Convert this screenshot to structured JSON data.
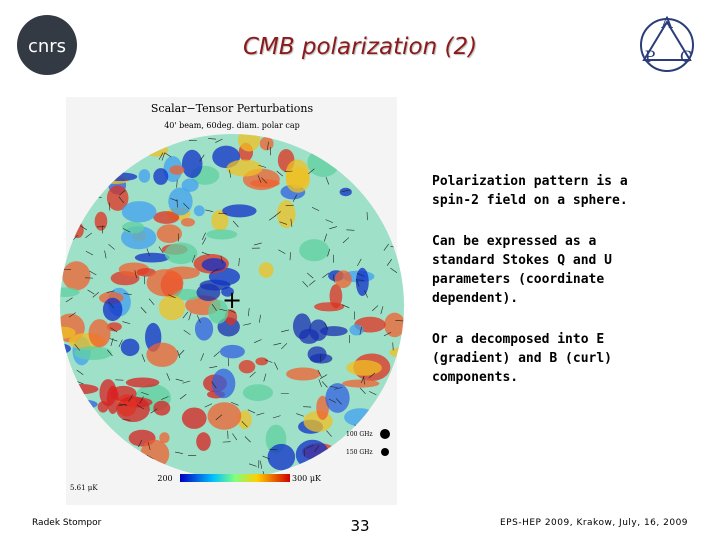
{
  "header": {
    "title": "CMB polarization (2)",
    "logo_left": "cnrs"
  },
  "figure": {
    "title": "Scalar−Tensor Perturbations",
    "subtitle": "40' beam, 60deg. diam. polar cap",
    "scale_low": "200",
    "scale_high": "300 μK",
    "noise": "5.61 μK",
    "freq1": "100 GHz",
    "freq2": "150 GHz"
  },
  "body": {
    "paragraphs": [
      "Polarization pattern is a spin-2 field on a sphere.",
      "Can be expressed as a standard Stokes Q and U parameters (coordinate dependent).",
      "Or a decomposed into E (gradient) and B (curl) components."
    ]
  },
  "footer": {
    "author": "Radek Stompor",
    "page": "33",
    "event": "EPS-HEP 2009, Krakow, July, 16, 2009"
  }
}
